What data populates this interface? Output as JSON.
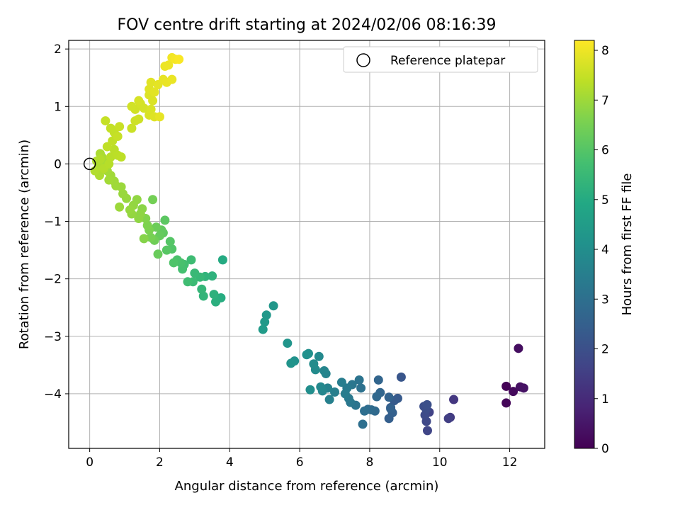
{
  "chart_data": {
    "type": "scatter",
    "title": "FOV centre drift starting at 2024/02/06 08:16:39",
    "xlabel": "Angular distance from reference (arcmin)",
    "ylabel": "Rotation from reference (arcmin)",
    "xlim": [
      -0.6,
      13.0
    ],
    "ylim": [
      -4.95,
      2.15
    ],
    "xticks": [
      0,
      2,
      4,
      6,
      8,
      10,
      12
    ],
    "yticks": [
      -4,
      -3,
      -2,
      -1,
      0,
      1,
      2
    ],
    "xtick_labels": [
      "0",
      "2",
      "4",
      "6",
      "8",
      "10",
      "12"
    ],
    "ytick_labels": [
      "−4",
      "−3",
      "−2",
      "−1",
      "0",
      "1",
      "2"
    ],
    "grid": true,
    "legend": {
      "position": "upper right",
      "entries": [
        "Reference platepar"
      ]
    },
    "reference_point": {
      "x": 0,
      "y": 0
    },
    "colorbar": {
      "label": "Hours from first FF file",
      "colormap": "viridis",
      "range": [
        0,
        8.2
      ],
      "ticks": [
        0,
        1,
        2,
        3,
        4,
        5,
        6,
        7,
        8
      ],
      "tick_labels": [
        "0",
        "1",
        "2",
        "3",
        "4",
        "5",
        "6",
        "7",
        "8"
      ]
    },
    "points": [
      [
        11.9,
        -3.87,
        0.05
      ],
      [
        11.9,
        -4.16,
        0.1
      ],
      [
        12.1,
        -3.96,
        0.2
      ],
      [
        12.25,
        -3.21,
        0.3
      ],
      [
        12.3,
        -3.88,
        0.35
      ],
      [
        12.4,
        -3.9,
        0.4
      ],
      [
        10.4,
        -4.1,
        1.3
      ],
      [
        10.3,
        -4.41,
        1.4
      ],
      [
        10.25,
        -4.43,
        1.5
      ],
      [
        9.7,
        -4.32,
        1.6
      ],
      [
        9.65,
        -4.64,
        1.7
      ],
      [
        9.62,
        -4.48,
        1.8
      ],
      [
        9.58,
        -4.37,
        1.85
      ],
      [
        9.62,
        -4.27,
        1.9
      ],
      [
        9.55,
        -4.22,
        1.95
      ],
      [
        9.64,
        -4.19,
        2.0
      ],
      [
        8.9,
        -3.71,
        2.2
      ],
      [
        8.8,
        -4.08,
        2.3
      ],
      [
        8.7,
        -4.12,
        2.35
      ],
      [
        8.6,
        -4.24,
        2.4
      ],
      [
        8.55,
        -4.43,
        2.45
      ],
      [
        8.65,
        -4.33,
        2.5
      ],
      [
        8.6,
        -4.26,
        2.55
      ],
      [
        8.55,
        -4.06,
        2.6
      ],
      [
        8.25,
        -3.76,
        2.65
      ],
      [
        8.3,
        -3.98,
        2.7
      ],
      [
        8.2,
        -4.05,
        2.75
      ],
      [
        8.15,
        -4.3,
        2.8
      ],
      [
        8.05,
        -4.28,
        2.85
      ],
      [
        7.95,
        -4.27,
        2.9
      ],
      [
        7.85,
        -4.3,
        2.95
      ],
      [
        7.8,
        -4.53,
        3.0
      ],
      [
        7.75,
        -3.9,
        3.05
      ],
      [
        7.7,
        -3.76,
        3.1
      ],
      [
        7.6,
        -4.2,
        3.15
      ],
      [
        7.5,
        -3.84,
        3.2
      ],
      [
        7.45,
        -4.15,
        3.25
      ],
      [
        7.4,
        -4.08,
        3.3
      ],
      [
        7.35,
        -3.9,
        3.35
      ],
      [
        7.3,
        -4.0,
        3.4
      ],
      [
        7.2,
        -3.8,
        3.45
      ],
      [
        7.0,
        -3.97,
        3.5
      ],
      [
        6.85,
        -4.1,
        3.55
      ],
      [
        6.8,
        -3.9,
        3.6
      ],
      [
        6.75,
        -3.65,
        3.65
      ],
      [
        6.7,
        -3.6,
        3.7
      ],
      [
        6.65,
        -3.95,
        3.75
      ],
      [
        6.6,
        -3.88,
        3.8
      ],
      [
        6.55,
        -3.35,
        3.85
      ],
      [
        6.45,
        -3.58,
        3.9
      ],
      [
        6.4,
        -3.48,
        3.95
      ],
      [
        6.3,
        -3.93,
        4.0
      ],
      [
        6.25,
        -3.3,
        4.05
      ],
      [
        6.2,
        -3.32,
        4.1
      ],
      [
        5.85,
        -3.43,
        4.15
      ],
      [
        5.75,
        -3.47,
        4.2
      ],
      [
        5.65,
        -3.12,
        4.25
      ],
      [
        5.25,
        -2.47,
        4.3
      ],
      [
        5.05,
        -2.63,
        4.35
      ],
      [
        5.0,
        -2.75,
        4.4
      ],
      [
        4.95,
        -2.88,
        4.45
      ],
      [
        3.8,
        -1.67,
        5.0
      ],
      [
        3.75,
        -2.33,
        5.05
      ],
      [
        3.65,
        -2.35,
        5.1
      ],
      [
        3.6,
        -2.4,
        5.15
      ],
      [
        3.55,
        -2.27,
        5.2
      ],
      [
        3.5,
        -1.95,
        5.25
      ],
      [
        3.3,
        -1.96,
        5.3
      ],
      [
        3.25,
        -2.3,
        5.35
      ],
      [
        3.2,
        -2.18,
        5.4
      ],
      [
        3.15,
        -1.97,
        5.45
      ],
      [
        3.0,
        -1.9,
        5.5
      ],
      [
        2.95,
        -2.05,
        5.55
      ],
      [
        2.9,
        -1.67,
        5.6
      ],
      [
        2.8,
        -2.05,
        5.65
      ],
      [
        2.7,
        -1.75,
        5.7
      ],
      [
        2.65,
        -1.83,
        5.75
      ],
      [
        2.6,
        -1.72,
        5.8
      ],
      [
        2.5,
        -1.67,
        5.85
      ],
      [
        2.4,
        -1.72,
        5.9
      ],
      [
        2.35,
        -1.48,
        5.95
      ],
      [
        2.3,
        -1.35,
        6.0
      ],
      [
        2.2,
        -1.5,
        6.05
      ],
      [
        2.15,
        -0.98,
        6.1
      ],
      [
        2.1,
        -1.2,
        6.15
      ],
      [
        2.05,
        -1.15,
        6.2
      ],
      [
        2.0,
        -1.25,
        6.25
      ],
      [
        1.95,
        -1.57,
        6.3
      ],
      [
        1.9,
        -1.1,
        6.35
      ],
      [
        1.85,
        -1.33,
        6.4
      ],
      [
        1.8,
        -0.62,
        6.45
      ],
      [
        1.75,
        -1.28,
        6.5
      ],
      [
        1.7,
        -1.15,
        6.55
      ],
      [
        1.65,
        -1.07,
        6.6
      ],
      [
        1.6,
        -0.95,
        6.65
      ],
      [
        1.55,
        -1.3,
        6.7
      ],
      [
        1.5,
        -0.78,
        6.75
      ],
      [
        1.45,
        -0.87,
        6.8
      ],
      [
        1.4,
        -0.95,
        6.82
      ],
      [
        1.35,
        -0.62,
        6.84
      ],
      [
        1.25,
        -0.72,
        6.86
      ],
      [
        1.2,
        -0.87,
        6.88
      ],
      [
        1.15,
        -0.8,
        6.9
      ],
      [
        1.05,
        -0.6,
        6.92
      ],
      [
        0.95,
        -0.52,
        6.94
      ],
      [
        0.9,
        -0.4,
        6.96
      ],
      [
        0.85,
        -0.75,
        6.98
      ],
      [
        0.75,
        -0.38,
        7.0
      ],
      [
        0.7,
        -0.3,
        7.02
      ],
      [
        0.6,
        -0.2,
        7.04
      ],
      [
        0.55,
        -0.28,
        7.06
      ],
      [
        0.5,
        -0.12,
        7.08
      ],
      [
        0.45,
        -0.02,
        7.1
      ],
      [
        0.4,
        0.05,
        7.12
      ],
      [
        0.35,
        0.12,
        7.14
      ],
      [
        0.3,
        0.18,
        7.16
      ],
      [
        0.28,
        -0.2,
        7.18
      ],
      [
        0.25,
        -0.05,
        7.2
      ],
      [
        0.2,
        0.05,
        7.22
      ],
      [
        0.15,
        -0.12,
        7.24
      ],
      [
        0.3,
        0.08,
        7.26
      ],
      [
        0.4,
        -0.08,
        7.28
      ],
      [
        0.55,
        0.0,
        7.3
      ],
      [
        0.6,
        0.12,
        7.32
      ],
      [
        0.7,
        0.25,
        7.34
      ],
      [
        0.8,
        0.15,
        7.36
      ],
      [
        0.9,
        0.12,
        7.38
      ],
      [
        0.5,
        0.3,
        7.4
      ],
      [
        0.65,
        0.4,
        7.42
      ],
      [
        0.7,
        0.55,
        7.44
      ],
      [
        0.6,
        0.62,
        7.46
      ],
      [
        0.45,
        0.75,
        7.48
      ],
      [
        0.8,
        0.48,
        7.5
      ],
      [
        0.85,
        0.65,
        7.52
      ],
      [
        1.2,
        0.62,
        7.55
      ],
      [
        1.3,
        0.75,
        7.58
      ],
      [
        1.4,
        0.78,
        7.6
      ],
      [
        1.3,
        0.95,
        7.62
      ],
      [
        1.2,
        1.0,
        7.64
      ],
      [
        1.45,
        1.05,
        7.66
      ],
      [
        1.55,
        0.97,
        7.68
      ],
      [
        1.4,
        1.1,
        7.7
      ],
      [
        1.7,
        0.85,
        7.72
      ],
      [
        1.75,
        0.95,
        7.74
      ],
      [
        1.8,
        1.1,
        7.76
      ],
      [
        1.7,
        1.2,
        7.78
      ],
      [
        1.85,
        0.82,
        7.8
      ],
      [
        1.7,
        1.3,
        7.82
      ],
      [
        1.75,
        1.42,
        7.84
      ],
      [
        1.85,
        1.25,
        7.86
      ],
      [
        1.95,
        1.38,
        7.88
      ],
      [
        2.0,
        0.82,
        7.9
      ],
      [
        2.1,
        1.47,
        7.92
      ],
      [
        2.2,
        1.42,
        7.94
      ],
      [
        2.35,
        1.47,
        7.96
      ],
      [
        2.15,
        1.7,
        7.98
      ],
      [
        2.25,
        1.72,
        8.0
      ],
      [
        2.35,
        1.85,
        8.05
      ],
      [
        2.45,
        1.82,
        8.1
      ],
      [
        2.55,
        1.82,
        8.15
      ]
    ]
  }
}
